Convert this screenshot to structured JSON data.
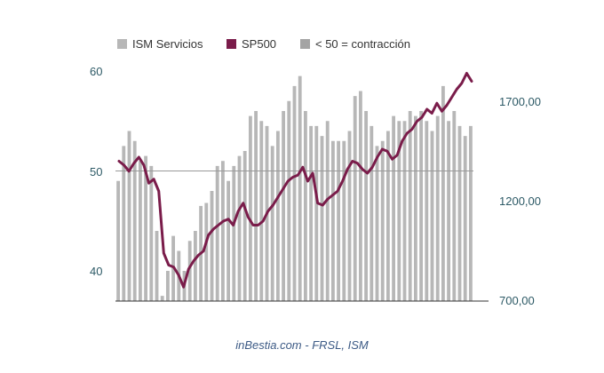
{
  "chart_data": {
    "type": "bar+line",
    "legend": {
      "placement": "top-center",
      "items": [
        {
          "label": "ISM Servicios",
          "color": "#b7b7b7"
        },
        {
          "label": "SP500",
          "color": "#7a1c4a"
        },
        {
          "label": "< 50 = contracción",
          "color": "#a4a4a4"
        }
      ]
    },
    "source": "inBestia.com - FRSL, ISM",
    "left_axis": {
      "ylim": [
        37,
        63
      ],
      "ticks": [
        {
          "value": 40,
          "label": "40"
        },
        {
          "value": 50,
          "label": "50"
        },
        {
          "value": 60,
          "label": "60"
        }
      ]
    },
    "right_axis": {
      "ylim": [
        700,
        1880
      ],
      "ticks": [
        {
          "value": 700,
          "label": "700,00"
        },
        {
          "value": 1200,
          "label": "1200,00"
        },
        {
          "value": 1700,
          "label": "1700,00"
        }
      ]
    },
    "reference_line": {
      "value": 50,
      "color": "#999999"
    },
    "series": [
      {
        "name": "ISM Servicios",
        "type": "bar",
        "axis": "left",
        "color": "#b7b7b7",
        "values": [
          49.0,
          52.5,
          54.0,
          53.0,
          51.0,
          51.5,
          50.5,
          44.0,
          37.5,
          40.0,
          43.5,
          42.0,
          40.0,
          43.0,
          44.0,
          46.5,
          46.8,
          48.0,
          50.5,
          51.0,
          49.0,
          50.5,
          51.5,
          52.0,
          55.5,
          56.0,
          55.0,
          54.5,
          52.5,
          54.0,
          56.0,
          57.0,
          58.5,
          59.5,
          56.0,
          54.5,
          54.5,
          53.5,
          55.0,
          53.0,
          53.0,
          53.0,
          54.0,
          57.5,
          58.0,
          56.0,
          54.5,
          52.5,
          53.0,
          54.0,
          55.5,
          55.0,
          55.0,
          56.0,
          55.5,
          56.0,
          55.0,
          54.0,
          55.5,
          58.5,
          55.0,
          56.0,
          54.5,
          53.5,
          54.5
        ]
      },
      {
        "name": "SP500",
        "type": "line",
        "axis": "right",
        "color": "#7a1c4a",
        "values": [
          1400,
          1380,
          1350,
          1390,
          1420,
          1380,
          1290,
          1310,
          1250,
          940,
          880,
          870,
          830,
          770,
          860,
          900,
          930,
          950,
          1030,
          1060,
          1080,
          1100,
          1110,
          1080,
          1150,
          1190,
          1120,
          1080,
          1080,
          1100,
          1150,
          1180,
          1220,
          1260,
          1300,
          1320,
          1330,
          1370,
          1300,
          1340,
          1190,
          1180,
          1210,
          1230,
          1250,
          1300,
          1360,
          1400,
          1390,
          1360,
          1340,
          1370,
          1420,
          1460,
          1450,
          1410,
          1430,
          1500,
          1540,
          1560,
          1600,
          1620,
          1660,
          1640,
          1690,
          1650,
          1680,
          1720,
          1760,
          1790,
          1840,
          1800
        ]
      }
    ]
  }
}
